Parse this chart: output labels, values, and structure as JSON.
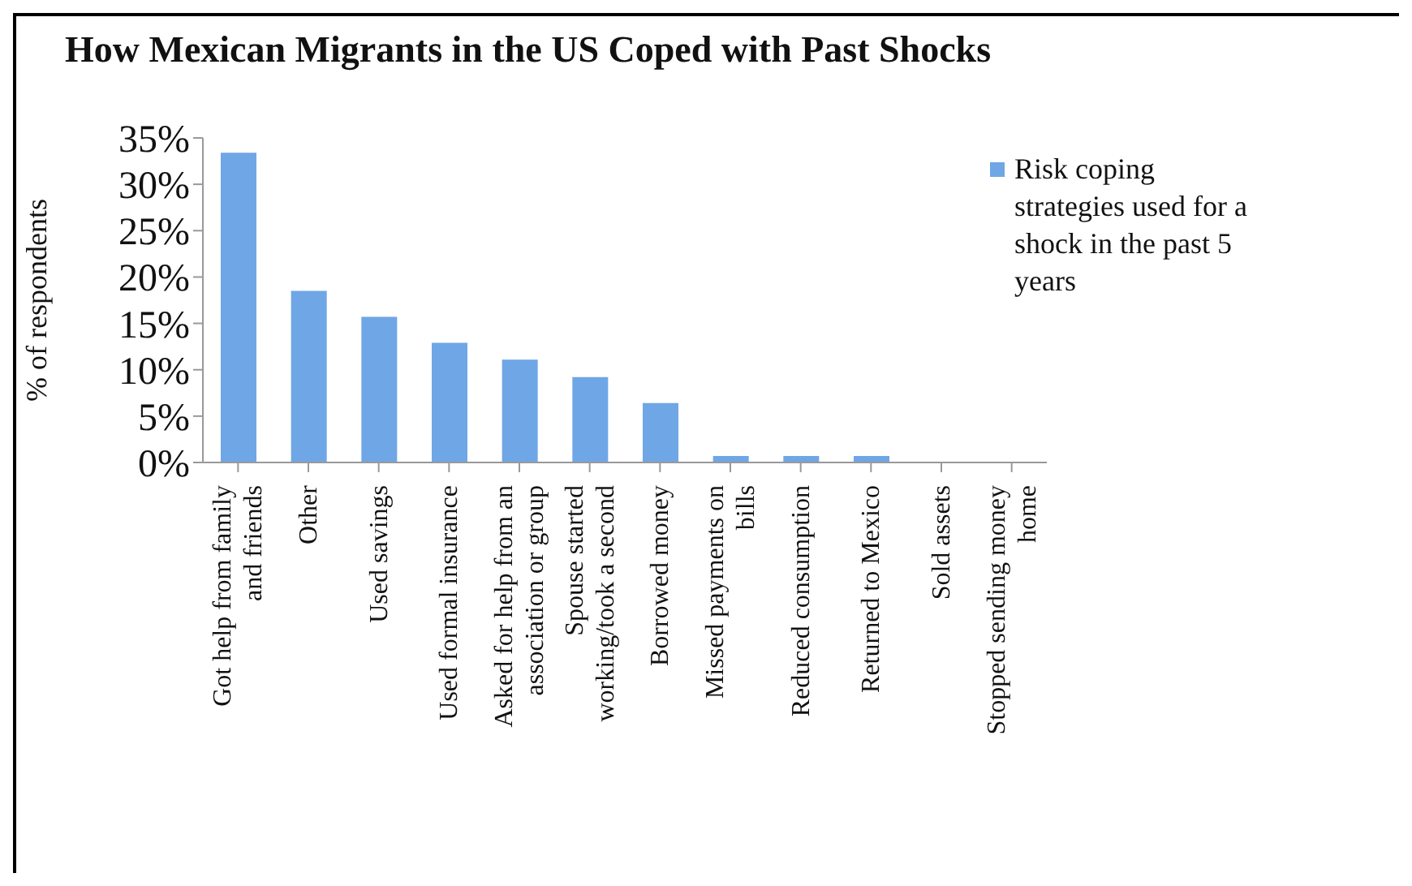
{
  "chart_data": {
    "type": "bar",
    "title": "How Mexican Migrants in the US Coped with Past Shocks",
    "ylabel": "% of respondents",
    "categories": [
      "Got help from family and friends",
      "Other",
      "Used savings",
      "Used formal insurance",
      "Asked for help from an association or group",
      "Spouse started working/took a second",
      "Borrowed money",
      "Missed payments on bills",
      "Reduced consumption",
      "Returned to Mexico",
      "Sold assets",
      "Stopped sending money home"
    ],
    "series": [
      {
        "name": "Risk coping strategies used for a shock in the past 5 years",
        "color": "#6fa6e6",
        "values": [
          33.4,
          18.5,
          15.7,
          12.9,
          11.1,
          9.2,
          6.4,
          0.7,
          0.7,
          0.7,
          0,
          0
        ]
      }
    ],
    "ylim": [
      0,
      35
    ],
    "yticks": [
      {
        "value": 0,
        "label": "0%"
      },
      {
        "value": 5,
        "label": "5%"
      },
      {
        "value": 10,
        "label": "10%"
      },
      {
        "value": 15,
        "label": "15%"
      },
      {
        "value": 20,
        "label": "20%"
      },
      {
        "value": 25,
        "label": "25%"
      },
      {
        "value": 30,
        "label": "30%"
      },
      {
        "value": 35,
        "label": "35%"
      }
    ],
    "grid": false,
    "legend": "top right"
  }
}
